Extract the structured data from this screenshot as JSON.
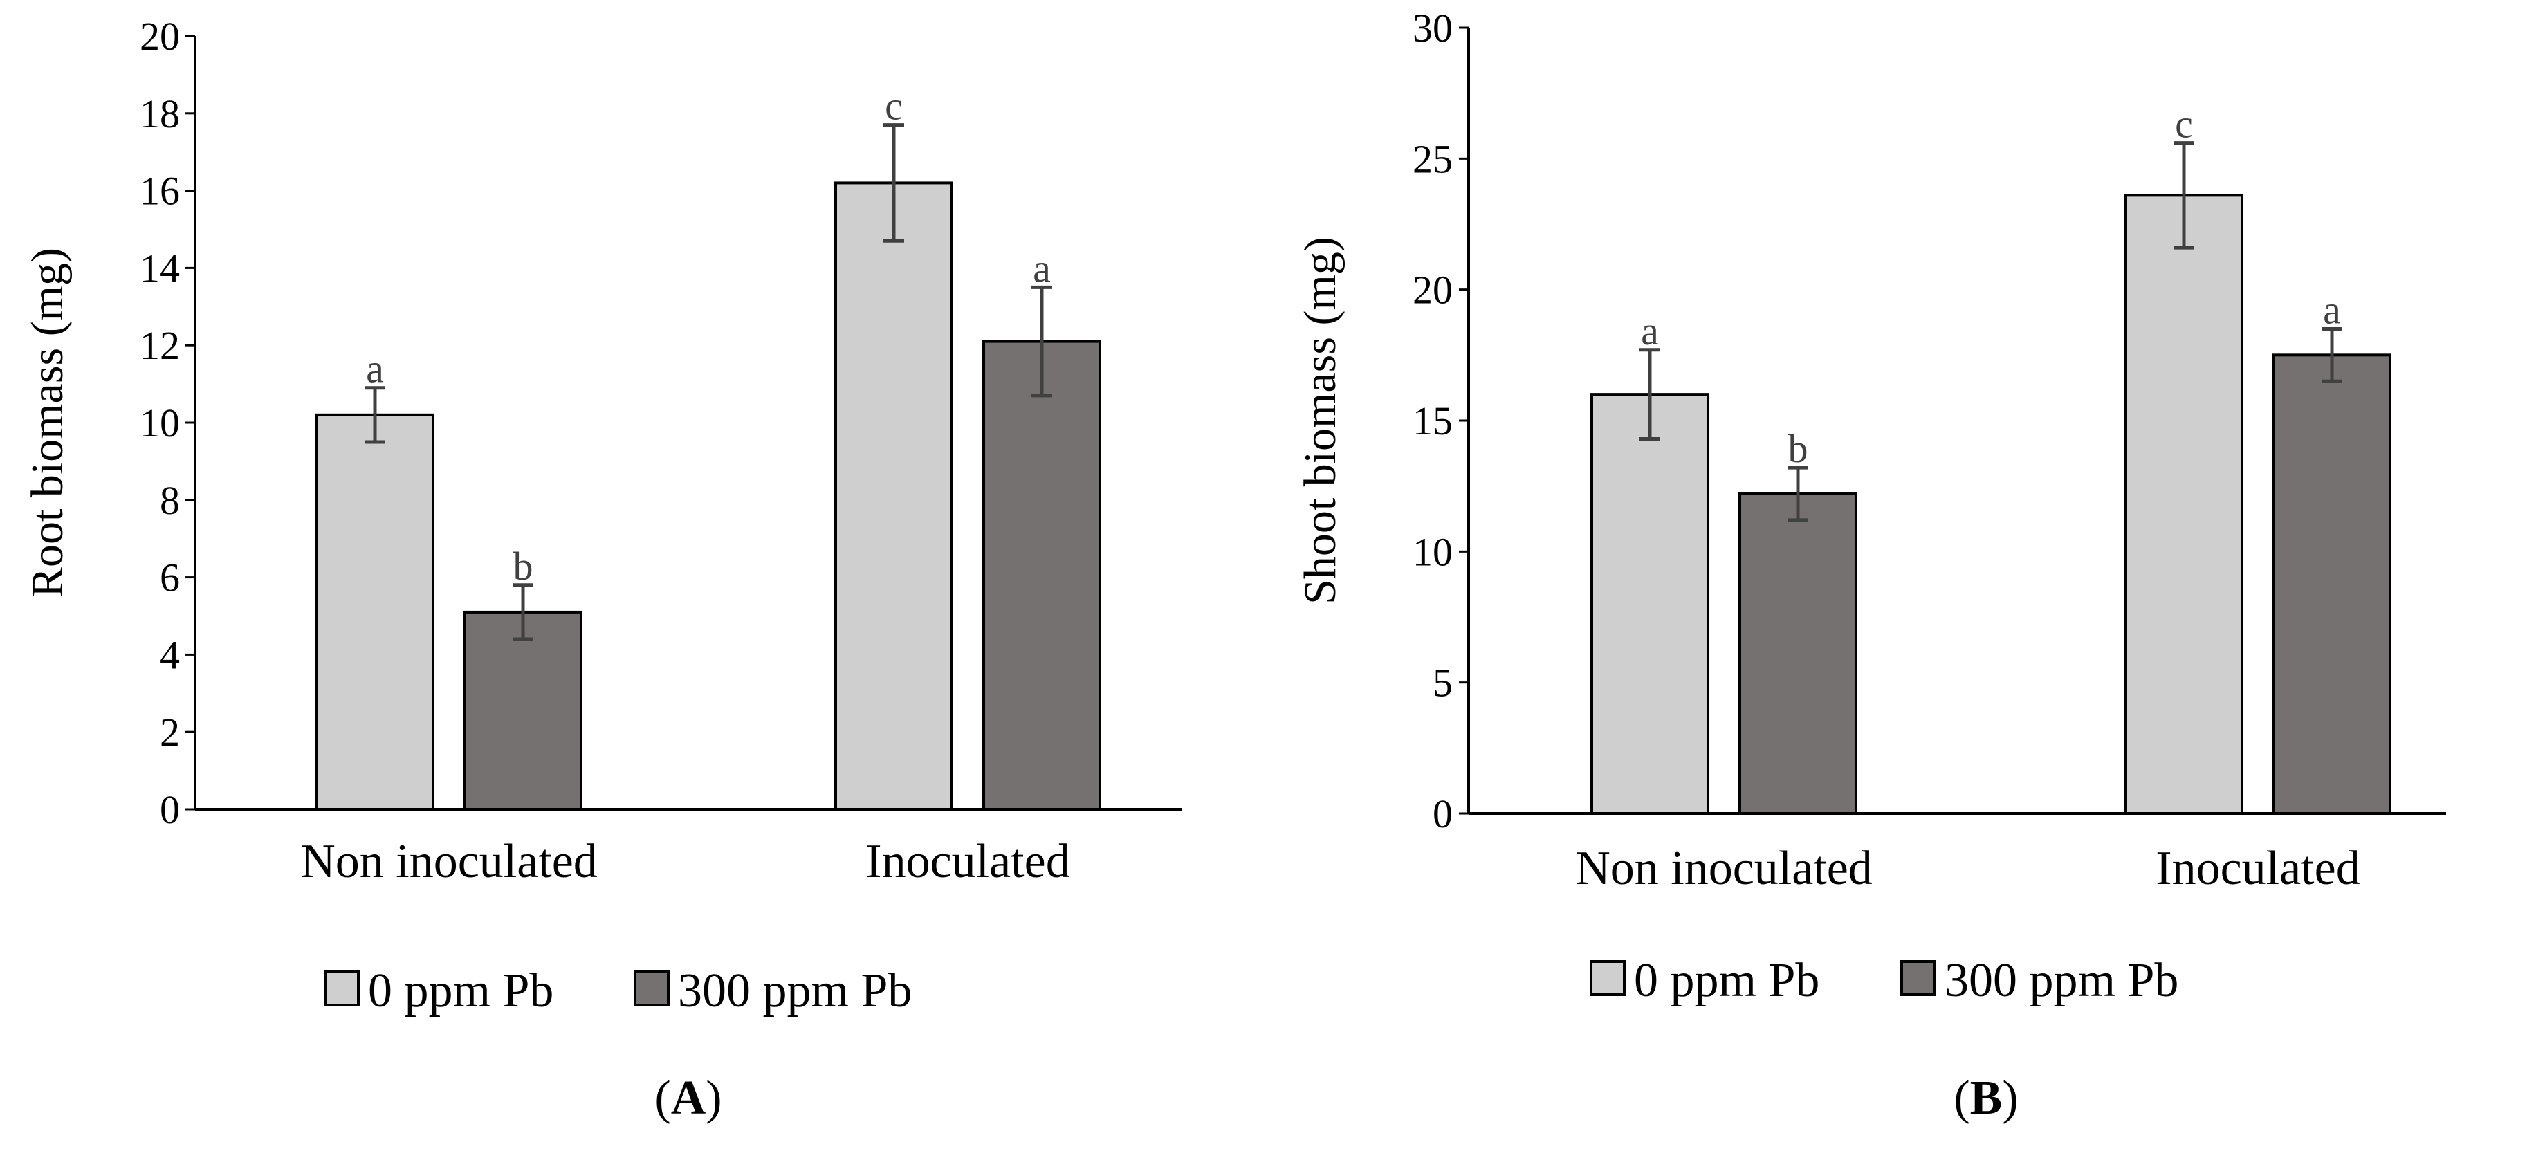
{
  "colors": {
    "series_0ppm": "#d0cfcf",
    "series_300ppm": "#757170",
    "error_bar": "#404040"
  },
  "chart_data": [
    {
      "type": "bar",
      "panel_label": "A",
      "categories": [
        "Non inoculated",
        "Inoculated"
      ],
      "ylabel": "Root  biomass (mg)",
      "ylim": [
        0,
        20
      ],
      "yticks": [
        "0",
        "2",
        "4",
        "6",
        "8",
        "10",
        "12",
        "14",
        "16",
        "18",
        "20"
      ],
      "legend_position": "bottom",
      "grid": false,
      "series": [
        {
          "name": "0 ppm Pb",
          "values": [
            10.2,
            16.2
          ],
          "errors": [
            0.7,
            1.5
          ],
          "letters": [
            "a",
            "c"
          ]
        },
        {
          "name": "300 ppm Pb",
          "values": [
            5.1,
            12.1
          ],
          "errors": [
            0.7,
            1.4
          ],
          "letters": [
            "b",
            "a"
          ]
        }
      ]
    },
    {
      "type": "bar",
      "panel_label": "B",
      "categories": [
        "Non inoculated",
        "Inoculated"
      ],
      "ylabel": "Shoot biomass  (mg)",
      "ylim": [
        0,
        30
      ],
      "yticks": [
        "0",
        "5",
        "10",
        "15",
        "20",
        "25",
        "30"
      ],
      "legend_position": "bottom",
      "grid": false,
      "series": [
        {
          "name": "0 ppm Pb",
          "values": [
            16.0,
            23.6
          ],
          "errors": [
            1.7,
            2.0
          ],
          "letters": [
            "a",
            "c"
          ]
        },
        {
          "name": "300 ppm Pb",
          "values": [
            12.2,
            17.5
          ],
          "errors": [
            1.0,
            1.0
          ],
          "letters": [
            "b",
            "a"
          ]
        }
      ]
    }
  ]
}
